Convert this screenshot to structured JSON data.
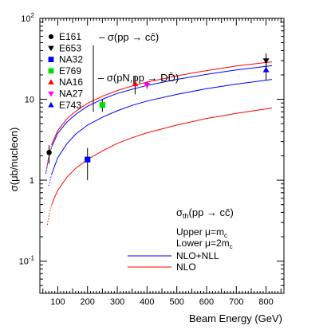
{
  "chart_data": {
    "type": "scatter",
    "xlabel": "Beam Energy (GeV)",
    "ylabel": "σ(μb/nucleon)",
    "xlim": [
      40,
      860
    ],
    "ylim": [
      0.04,
      100
    ],
    "yscale": "log",
    "x_ticks": [
      "100",
      "200",
      "300",
      "400",
      "500",
      "600",
      "700",
      "800"
    ],
    "x_tick_values": [
      100,
      200,
      300,
      400,
      500,
      600,
      700,
      800
    ],
    "y_tick_values": [
      0.1,
      1,
      10,
      100
    ],
    "y_tick_labels": [
      {
        "base": "10",
        "exp": "-1"
      },
      {
        "base": "1",
        "exp": ""
      },
      {
        "base": "10",
        "exp": ""
      },
      {
        "base": "10",
        "exp": "2"
      }
    ],
    "annotations": {
      "ccbar": "– σ(pp → cc̄)",
      "ddbar": "– σ(pN,pp → DD̄)",
      "sigma_th_main": "σ",
      "sigma_th_sub": "th",
      "sigma_th_rest": "(pp → cc̄)",
      "upper_main": "Upper μ=m",
      "upper_sub": "c",
      "lower_main": "Lower μ=2m",
      "lower_sub": "c"
    },
    "line_legend": [
      {
        "name": "NLO+NLL",
        "color": "#0000ff"
      },
      {
        "name": "NLO",
        "color": "#ff0000"
      }
    ],
    "experiments": [
      {
        "name": "E161",
        "marker": "circle",
        "color": "#000000",
        "x": 71,
        "y": 2.2,
        "err_lo": 0.6,
        "err_hi": 0.5
      },
      {
        "name": "E653",
        "marker": "triangle-down",
        "color": "#000000",
        "x": 800,
        "y": 30,
        "err_lo": 7,
        "err_hi": 7
      },
      {
        "name": "NA32",
        "marker": "square",
        "color": "#0000ff",
        "x": 200,
        "y": 1.8,
        "err_lo": 0.8,
        "err_hi": 0.7
      },
      {
        "name": "E769",
        "marker": "square",
        "color": "#00dd00",
        "x": 250,
        "y": 8.5,
        "err_lo": 1.5,
        "err_hi": 1.5
      },
      {
        "name": "NA16",
        "marker": "triangle-up",
        "color": "#ff0000",
        "x": 360,
        "y": 15.5,
        "err_lo": 4,
        "err_hi": 4
      },
      {
        "name": "NA27",
        "marker": "triangle-down",
        "color": "#ff00ff",
        "x": 400,
        "y": 15,
        "err_lo": 1.5,
        "err_hi": 1.5
      },
      {
        "name": "E743",
        "marker": "triangle-up",
        "color": "#0000ff",
        "x": 800,
        "y": 23,
        "err_lo": 6,
        "err_hi": 6
      }
    ],
    "curves": [
      {
        "name": "NLO+NLL upper",
        "color": "#0000ff",
        "points": [
          [
            60,
            1.2
          ],
          [
            70,
            1.9
          ],
          [
            80,
            2.6
          ],
          [
            100,
            3.8
          ],
          [
            130,
            5.2
          ],
          [
            160,
            6.5
          ],
          [
            200,
            8.2
          ],
          [
            250,
            10
          ],
          [
            300,
            11.8
          ],
          [
            350,
            13.3
          ],
          [
            400,
            14.8
          ],
          [
            500,
            17.6
          ],
          [
            600,
            20.3
          ],
          [
            700,
            23
          ],
          [
            800,
            25.5
          ],
          [
            820,
            26
          ]
        ]
      },
      {
        "name": "NLO upper",
        "color": "#ff0000",
        "points": [
          [
            60,
            1.25
          ],
          [
            70,
            2.0
          ],
          [
            80,
            2.8
          ],
          [
            100,
            4.1
          ],
          [
            130,
            5.7
          ],
          [
            160,
            7.1
          ],
          [
            200,
            8.9
          ],
          [
            250,
            10.9
          ],
          [
            300,
            12.8
          ],
          [
            350,
            14.6
          ],
          [
            400,
            16.3
          ],
          [
            500,
            19.5
          ],
          [
            600,
            22.6
          ],
          [
            700,
            25.8
          ],
          [
            800,
            28.5
          ],
          [
            820,
            29
          ]
        ]
      },
      {
        "name": "NLO+NLL lower",
        "color": "#0000ff",
        "points": [
          [
            70,
            0.85
          ],
          [
            80,
            1.2
          ],
          [
            100,
            1.9
          ],
          [
            130,
            2.8
          ],
          [
            160,
            3.7
          ],
          [
            200,
            4.8
          ],
          [
            250,
            6.0
          ],
          [
            300,
            7.2
          ],
          [
            350,
            8.4
          ],
          [
            400,
            9.5
          ],
          [
            500,
            11.5
          ],
          [
            600,
            13.5
          ],
          [
            700,
            15.4
          ],
          [
            800,
            17.2
          ],
          [
            820,
            17.6
          ]
        ]
      },
      {
        "name": "NLO lower",
        "color": "#ff0000",
        "points": [
          [
            65,
            0.28
          ],
          [
            70,
            0.36
          ],
          [
            80,
            0.5
          ],
          [
            90,
            0.62
          ],
          [
            100,
            0.75
          ],
          [
            130,
            1.08
          ],
          [
            160,
            1.4
          ],
          [
            200,
            1.8
          ],
          [
            250,
            2.3
          ],
          [
            300,
            2.85
          ],
          [
            350,
            3.35
          ],
          [
            400,
            3.85
          ],
          [
            500,
            4.8
          ],
          [
            600,
            5.8
          ],
          [
            700,
            6.7
          ],
          [
            800,
            7.6
          ],
          [
            820,
            7.8
          ]
        ]
      }
    ]
  }
}
